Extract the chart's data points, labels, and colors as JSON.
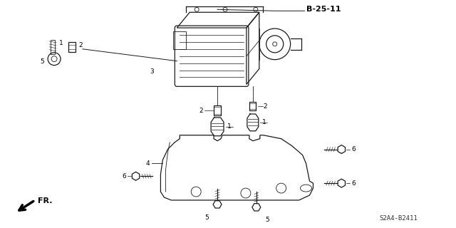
{
  "bg_color": "#ffffff",
  "line_color": "#1a1a1a",
  "text_color": "#000000",
  "diagram_code": "B-25-11",
  "part_code": "S2A4-B2411",
  "fr_label": "FR.",
  "fig_width": 6.4,
  "fig_height": 3.2,
  "dpi": 100
}
